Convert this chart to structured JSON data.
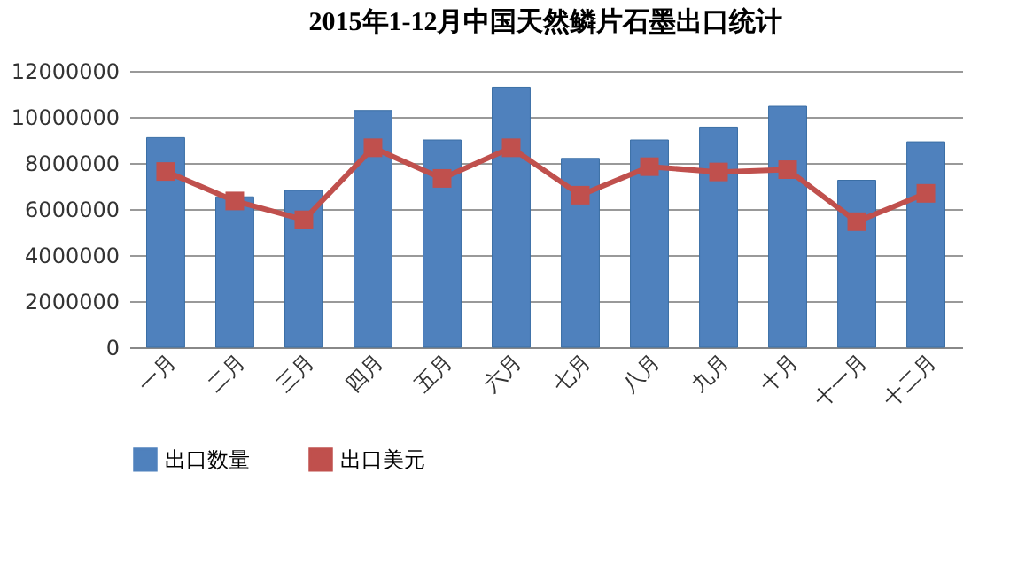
{
  "chart_data": {
    "type": "bar",
    "title": "2015年1-12月中国天然鳞片石墨出口统计",
    "categories": [
      "一月",
      "二月",
      "三月",
      "四月",
      "五月",
      "六月",
      "七月",
      "八月",
      "九月",
      "十月",
      "十一月",
      "十二月"
    ],
    "series": [
      {
        "name": "出口数量",
        "color": "#4f81bd",
        "values": [
          9100000,
          6530000,
          6810000,
          10280000,
          9000000,
          11290000,
          8200000,
          9000000,
          9560000,
          10460000,
          7250000,
          8920000
        ]
      },
      {
        "name": "出口美元",
        "type": "line",
        "color": "#c0504d",
        "values": [
          7630000,
          6350000,
          5530000,
          8660000,
          7330000,
          8660000,
          6600000,
          7840000,
          7610000,
          7710000,
          5450000,
          6680000
        ]
      }
    ],
    "ylim": [
      0,
      12000000
    ],
    "yticks": [
      0,
      2000000,
      4000000,
      6000000,
      8000000,
      10000000,
      12000000
    ],
    "grid": "y",
    "legend": "bottom",
    "marker": "square",
    "line_style": "solid"
  }
}
